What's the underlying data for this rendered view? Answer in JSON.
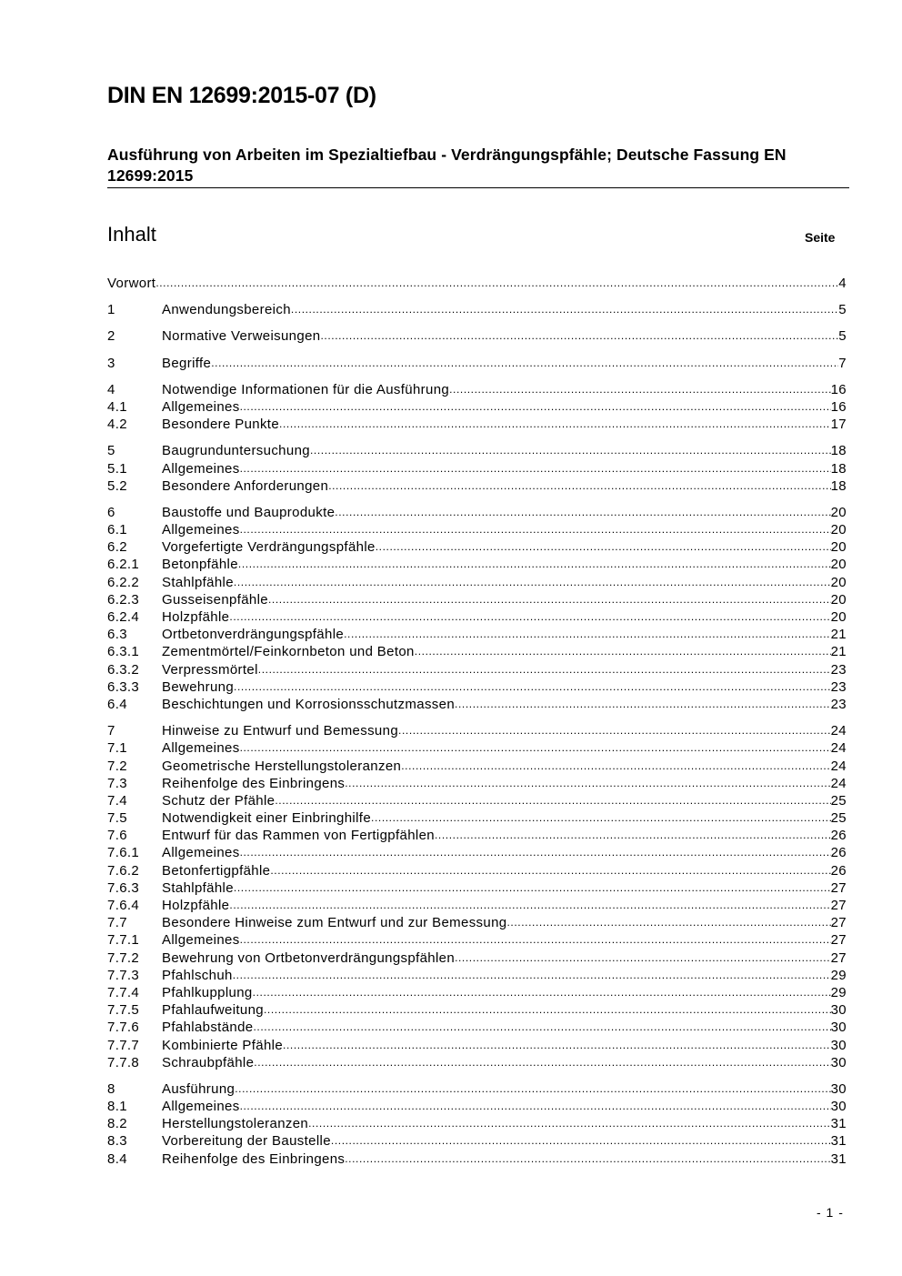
{
  "header": {
    "title": "DIN EN 12699:2015-07 (D)",
    "subtitle": "Ausführung von Arbeiten im Spezialtiefbau - Verdrängungspfähle; Deutsche Fassung EN 12699:2015"
  },
  "toc": {
    "heading": "Inhalt",
    "page_label": "Seite",
    "groups": [
      [
        {
          "num": "",
          "title": "Vorwort",
          "page": "4"
        }
      ],
      [
        {
          "num": "1",
          "title": "Anwendungsbereich",
          "page": "5"
        }
      ],
      [
        {
          "num": "2",
          "title": "Normative Verweisungen",
          "page": "5"
        }
      ],
      [
        {
          "num": "3",
          "title": "Begriffe",
          "page": "7"
        }
      ],
      [
        {
          "num": "4",
          "title": "Notwendige Informationen für die Ausführung",
          "page": "16"
        },
        {
          "num": "4.1",
          "title": "Allgemeines",
          "page": "16"
        },
        {
          "num": "4.2",
          "title": "Besondere Punkte",
          "page": "17"
        }
      ],
      [
        {
          "num": "5",
          "title": "Baugrunduntersuchung",
          "page": "18"
        },
        {
          "num": "5.1",
          "title": "Allgemeines",
          "page": "18"
        },
        {
          "num": "5.2",
          "title": "Besondere Anforderungen",
          "page": "18"
        }
      ],
      [
        {
          "num": "6",
          "title": "Baustoffe und Bauprodukte",
          "page": "20"
        },
        {
          "num": "6.1",
          "title": "Allgemeines",
          "page": "20"
        },
        {
          "num": "6.2",
          "title": "Vorgefertigte Verdrängungspfähle",
          "page": "20"
        },
        {
          "num": "6.2.1",
          "title": "Betonpfähle",
          "page": "20"
        },
        {
          "num": "6.2.2",
          "title": "Stahlpfähle",
          "page": "20"
        },
        {
          "num": "6.2.3",
          "title": "Gusseisenpfähle",
          "page": "20"
        },
        {
          "num": "6.2.4",
          "title": "Holzpfähle",
          "page": "20"
        },
        {
          "num": "6.3",
          "title": "Ortbetonverdrängungspfähle",
          "page": "21"
        },
        {
          "num": "6.3.1",
          "title": "Zementmörtel/Feinkornbeton und Beton",
          "page": "21"
        },
        {
          "num": "6.3.2",
          "title": "Verpressmörtel",
          "page": "23"
        },
        {
          "num": "6.3.3",
          "title": "Bewehrung",
          "page": "23"
        },
        {
          "num": "6.4",
          "title": "Beschichtungen und Korrosionsschutzmassen",
          "page": "23"
        }
      ],
      [
        {
          "num": "7",
          "title": "Hinweise zu Entwurf und Bemessung",
          "page": "24"
        },
        {
          "num": "7.1",
          "title": "Allgemeines",
          "page": "24"
        },
        {
          "num": "7.2",
          "title": "Geometrische Herstellungstoleranzen",
          "page": "24"
        },
        {
          "num": "7.3",
          "title": "Reihenfolge des Einbringens",
          "page": "24"
        },
        {
          "num": "7.4",
          "title": "Schutz der Pfähle",
          "page": "25"
        },
        {
          "num": "7.5",
          "title": "Notwendigkeit einer Einbringhilfe",
          "page": "25"
        },
        {
          "num": "7.6",
          "title": "Entwurf für das Rammen von Fertigpfählen",
          "page": "26"
        },
        {
          "num": "7.6.1",
          "title": "Allgemeines",
          "page": "26"
        },
        {
          "num": "7.6.2",
          "title": "Betonfertigpfähle",
          "page": "26"
        },
        {
          "num": "7.6.3",
          "title": "Stahlpfähle",
          "page": "27"
        },
        {
          "num": "7.6.4",
          "title": "Holzpfähle",
          "page": "27"
        },
        {
          "num": "7.7",
          "title": "Besondere Hinweise zum Entwurf und zur Bemessung",
          "page": "27"
        },
        {
          "num": "7.7.1",
          "title": "Allgemeines",
          "page": "27"
        },
        {
          "num": "7.7.2",
          "title": "Bewehrung von Ortbetonverdrängungspfählen",
          "page": "27"
        },
        {
          "num": "7.7.3",
          "title": "Pfahlschuh",
          "page": "29"
        },
        {
          "num": "7.7.4",
          "title": "Pfahlkupplung",
          "page": "29"
        },
        {
          "num": "7.7.5",
          "title": "Pfahlaufweitung",
          "page": "30"
        },
        {
          "num": "7.7.6",
          "title": "Pfahlabstände",
          "page": "30"
        },
        {
          "num": "7.7.7",
          "title": "Kombinierte Pfähle",
          "page": "30"
        },
        {
          "num": "7.7.8",
          "title": "Schraubpfähle",
          "page": "30"
        }
      ],
      [
        {
          "num": "8",
          "title": "Ausführung",
          "page": "30"
        },
        {
          "num": "8.1",
          "title": "Allgemeines",
          "page": "30"
        },
        {
          "num": "8.2",
          "title": "Herstellungstoleranzen",
          "page": "31"
        },
        {
          "num": "8.3",
          "title": "Vorbereitung der Baustelle",
          "page": "31"
        },
        {
          "num": "8.4",
          "title": "Reihenfolge des Einbringens",
          "page": "31"
        }
      ]
    ]
  },
  "footer": {
    "page_number": "- 1 -"
  }
}
